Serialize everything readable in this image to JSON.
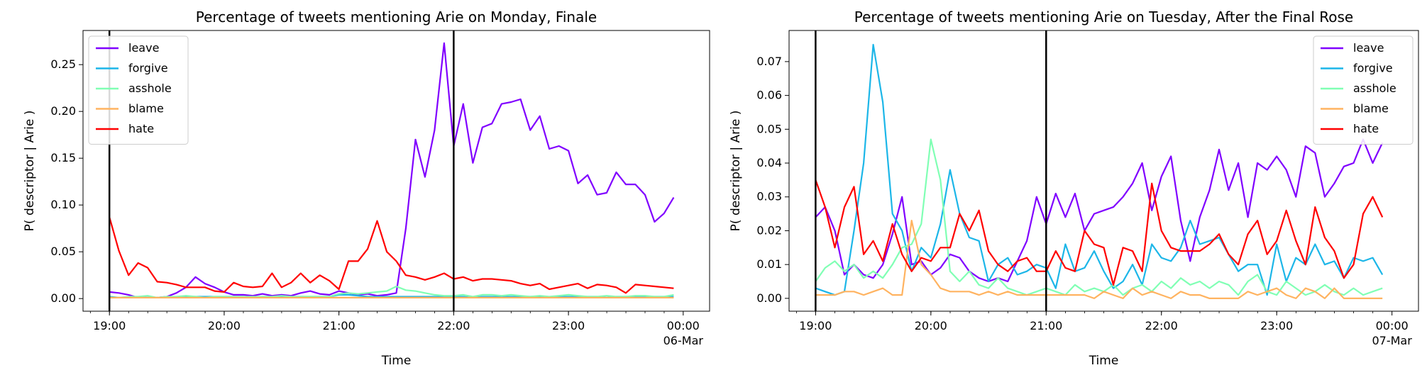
{
  "chart_data": [
    {
      "type": "line",
      "title": "Percentage of tweets mentioning Arie on Monday, Finale",
      "xlabel": "Time",
      "ylabel": "P( descriptor | Arie )",
      "date_label": "06-Mar",
      "x_tick_labels": [
        "19:00",
        "20:00",
        "21:00",
        "22:00",
        "23:00",
        "00:00"
      ],
      "x_tick_hours": [
        0,
        1,
        2,
        3,
        4,
        5
      ],
      "y_tick_labels": [
        "0.00",
        "0.05",
        "0.10",
        "0.15",
        "0.20",
        "0.25"
      ],
      "y_ticks": [
        0,
        0.05,
        0.1,
        0.15,
        0.2,
        0.25
      ],
      "xlim": [
        -0.23,
        5.23
      ],
      "ylim": [
        -0.0135,
        0.2865
      ],
      "vlines": [
        0,
        3
      ],
      "legend_position": "upper left",
      "x_hours": [
        0,
        0.083,
        0.167,
        0.25,
        0.333,
        0.417,
        0.5,
        0.583,
        0.667,
        0.75,
        0.833,
        0.917,
        1,
        1.083,
        1.167,
        1.25,
        1.333,
        1.417,
        1.5,
        1.583,
        1.667,
        1.75,
        1.833,
        1.917,
        2,
        2.083,
        2.167,
        2.25,
        2.333,
        2.417,
        2.5,
        2.583,
        2.667,
        2.75,
        2.833,
        2.917,
        3,
        3.083,
        3.167,
        3.25,
        3.333,
        3.417,
        3.5,
        3.583,
        3.667,
        3.75,
        3.833,
        3.917,
        4,
        4.083,
        4.167,
        4.25,
        4.333,
        4.417,
        4.5,
        4.583,
        4.667,
        4.75,
        4.833,
        4.917
      ],
      "series": [
        {
          "name": "leave",
          "color": "#8000ff",
          "values": [
            0.007,
            0.006,
            0.004,
            0.001,
            0.001,
            0.001,
            0.002,
            0.006,
            0.012,
            0.023,
            0.016,
            0.012,
            0.007,
            0.004,
            0.004,
            0.003,
            0.005,
            0.003,
            0.004,
            0.003,
            0.006,
            0.008,
            0.005,
            0.004,
            0.008,
            0.006,
            0.004,
            0.005,
            0.003,
            0.004,
            0.006,
            0.075,
            0.17,
            0.13,
            0.18,
            0.273,
            0.163,
            0.208,
            0.145,
            0.183,
            0.187,
            0.208,
            0.21,
            0.213,
            0.18,
            0.195,
            0.16,
            0.163,
            0.158,
            0.123,
            0.132,
            0.111,
            0.113,
            0.135,
            0.122,
            0.122,
            0.111,
            0.082,
            0.091,
            0.108
          ]
        },
        {
          "name": "forgive",
          "color": "#1cb6e8",
          "values": [
            0.002,
            0.001,
            0.001,
            0.001,
            0.001,
            0.001,
            0.001,
            0.001,
            0.002,
            0.002,
            0.002,
            0.002,
            0.002,
            0.002,
            0.002,
            0.001,
            0.002,
            0.002,
            0.002,
            0.002,
            0.002,
            0.002,
            0.002,
            0.002,
            0.004,
            0.004,
            0.003,
            0.002,
            0.002,
            0.002,
            0.002,
            0.002,
            0.002,
            0.002,
            0.002,
            0.002,
            0.002,
            0.002,
            0.001,
            0.002,
            0.002,
            0.002,
            0.002,
            0.002,
            0.002,
            0.002,
            0.001,
            0.002,
            0.002,
            0.002,
            0.002,
            0.002,
            0.001,
            0.002,
            0.002,
            0.002,
            0.002,
            0.002,
            0.002,
            0.002
          ]
        },
        {
          "name": "asshole",
          "color": "#80ffb4",
          "values": [
            0.001,
            0.001,
            0.002,
            0.002,
            0.003,
            0.001,
            0.002,
            0.002,
            0.003,
            0.002,
            0.001,
            0.002,
            0.002,
            0.002,
            0.002,
            0.002,
            0.002,
            0.002,
            0.003,
            0.002,
            0.002,
            0.002,
            0.002,
            0.002,
            0.005,
            0.006,
            0.005,
            0.006,
            0.007,
            0.008,
            0.013,
            0.009,
            0.008,
            0.006,
            0.004,
            0.003,
            0.003,
            0.004,
            0.002,
            0.004,
            0.004,
            0.003,
            0.004,
            0.003,
            0.002,
            0.003,
            0.002,
            0.003,
            0.004,
            0.003,
            0.002,
            0.002,
            0.003,
            0.002,
            0.002,
            0.003,
            0.003,
            0.002,
            0.002,
            0.004
          ]
        },
        {
          "name": "blame",
          "color": "#ffb360",
          "values": [
            0.001,
            0.001,
            0.001,
            0.001,
            0.001,
            0.001,
            0.001,
            0.001,
            0.001,
            0.001,
            0.001,
            0.001,
            0.001,
            0.001,
            0.001,
            0.001,
            0.001,
            0.001,
            0.001,
            0.001,
            0.001,
            0.001,
            0.001,
            0.001,
            0.001,
            0.001,
            0.001,
            0.001,
            0.001,
            0.001,
            0.001,
            0.001,
            0.001,
            0.001,
            0.001,
            0.001,
            0.001,
            0.001,
            0.001,
            0.001,
            0.001,
            0.001,
            0.001,
            0.001,
            0.001,
            0.001,
            0.001,
            0.001,
            0.001,
            0.001,
            0.001,
            0.001,
            0.001,
            0.001,
            0.001,
            0.001,
            0.001,
            0.001,
            0.001,
            0.001
          ]
        },
        {
          "name": "hate",
          "color": "#ff0000",
          "values": [
            0.087,
            0.051,
            0.025,
            0.038,
            0.033,
            0.018,
            0.017,
            0.015,
            0.012,
            0.012,
            0.012,
            0.008,
            0.007,
            0.017,
            0.013,
            0.012,
            0.013,
            0.027,
            0.012,
            0.017,
            0.027,
            0.017,
            0.025,
            0.019,
            0.01,
            0.04,
            0.04,
            0.053,
            0.083,
            0.05,
            0.04,
            0.025,
            0.023,
            0.02,
            0.023,
            0.027,
            0.021,
            0.023,
            0.019,
            0.021,
            0.021,
            0.02,
            0.019,
            0.016,
            0.014,
            0.016,
            0.01,
            0.012,
            0.014,
            0.016,
            0.011,
            0.015,
            0.014,
            0.012,
            0.006,
            0.015,
            0.014,
            0.013,
            0.012,
            0.011
          ]
        }
      ]
    },
    {
      "type": "line",
      "title": "Percentage of tweets mentioning Arie on Tuesday, After the Final Rose",
      "xlabel": "Time",
      "ylabel": "P( descriptor | Arie )",
      "date_label": "07-Mar",
      "x_tick_labels": [
        "19:00",
        "20:00",
        "21:00",
        "22:00",
        "23:00",
        "00:00"
      ],
      "x_tick_hours": [
        0,
        1,
        2,
        3,
        4,
        5
      ],
      "y_tick_labels": [
        "0.00",
        "0.01",
        "0.02",
        "0.03",
        "0.04",
        "0.05",
        "0.06",
        "0.07"
      ],
      "y_ticks": [
        0,
        0.01,
        0.02,
        0.03,
        0.04,
        0.05,
        0.06,
        0.07
      ],
      "xlim": [
        -0.23,
        5.23
      ],
      "ylim": [
        -0.0038,
        0.0792
      ],
      "vlines": [
        0,
        2
      ],
      "legend_position": "upper right",
      "x_hours": [
        0,
        0.083,
        0.167,
        0.25,
        0.333,
        0.417,
        0.5,
        0.583,
        0.667,
        0.75,
        0.833,
        0.917,
        1,
        1.083,
        1.167,
        1.25,
        1.333,
        1.417,
        1.5,
        1.583,
        1.667,
        1.75,
        1.833,
        1.917,
        2,
        2.083,
        2.167,
        2.25,
        2.333,
        2.417,
        2.5,
        2.583,
        2.667,
        2.75,
        2.833,
        2.917,
        3,
        3.083,
        3.167,
        3.25,
        3.333,
        3.417,
        3.5,
        3.583,
        3.667,
        3.75,
        3.833,
        3.917,
        4,
        4.083,
        4.167,
        4.25,
        4.333,
        4.417,
        4.5,
        4.583,
        4.667,
        4.75,
        4.833,
        4.917
      ],
      "series": [
        {
          "name": "leave",
          "color": "#8000ff",
          "values": [
            0.024,
            0.027,
            0.02,
            0.007,
            0.01,
            0.007,
            0.006,
            0.01,
            0.019,
            0.03,
            0.01,
            0.011,
            0.007,
            0.009,
            0.013,
            0.012,
            0.008,
            0.006,
            0.005,
            0.006,
            0.005,
            0.011,
            0.017,
            0.03,
            0.022,
            0.031,
            0.024,
            0.031,
            0.02,
            0.025,
            0.026,
            0.027,
            0.03,
            0.034,
            0.04,
            0.026,
            0.036,
            0.042,
            0.023,
            0.011,
            0.024,
            0.032,
            0.044,
            0.032,
            0.04,
            0.024,
            0.04,
            0.038,
            0.042,
            0.038,
            0.03,
            0.045,
            0.043,
            0.03,
            0.034,
            0.039,
            0.04,
            0.047,
            0.04,
            0.046
          ]
        },
        {
          "name": "forgive",
          "color": "#1cb6e8",
          "values": [
            0.003,
            0.002,
            0.001,
            0.002,
            0.02,
            0.04,
            0.075,
            0.058,
            0.025,
            0.02,
            0.008,
            0.015,
            0.012,
            0.022,
            0.038,
            0.025,
            0.018,
            0.017,
            0.005,
            0.01,
            0.012,
            0.007,
            0.008,
            0.01,
            0.009,
            0.003,
            0.016,
            0.008,
            0.009,
            0.014,
            0.008,
            0.003,
            0.005,
            0.01,
            0.004,
            0.016,
            0.012,
            0.011,
            0.015,
            0.023,
            0.016,
            0.017,
            0.018,
            0.013,
            0.008,
            0.01,
            0.01,
            0.001,
            0.016,
            0.005,
            0.012,
            0.01,
            0.016,
            0.01,
            0.011,
            0.006,
            0.012,
            0.011,
            0.012,
            0.007
          ]
        },
        {
          "name": "asshole",
          "color": "#80ffb4",
          "values": [
            0.005,
            0.009,
            0.011,
            0.008,
            0.01,
            0.006,
            0.008,
            0.006,
            0.01,
            0.015,
            0.016,
            0.022,
            0.047,
            0.035,
            0.008,
            0.005,
            0.008,
            0.004,
            0.003,
            0.006,
            0.003,
            0.002,
            0.001,
            0.002,
            0.003,
            0.002,
            0.001,
            0.004,
            0.002,
            0.003,
            0.002,
            0.004,
            0.001,
            0.003,
            0.004,
            0.002,
            0.005,
            0.003,
            0.006,
            0.004,
            0.005,
            0.003,
            0.005,
            0.004,
            0.001,
            0.005,
            0.007,
            0.002,
            0.001,
            0.005,
            0.003,
            0.001,
            0.002,
            0.004,
            0.002,
            0.001,
            0.003,
            0.001,
            0.002,
            0.003
          ]
        },
        {
          "name": "blame",
          "color": "#ffb360",
          "values": [
            0.001,
            0.001,
            0.001,
            0.002,
            0.002,
            0.001,
            0.002,
            0.003,
            0.001,
            0.001,
            0.023,
            0.01,
            0.007,
            0.003,
            0.002,
            0.002,
            0.002,
            0.001,
            0.002,
            0.001,
            0.002,
            0.001,
            0.001,
            0.001,
            0.001,
            0.001,
            0.001,
            0.001,
            0.001,
            0.0,
            0.002,
            0.001,
            0.0,
            0.003,
            0.001,
            0.002,
            0.001,
            0.0,
            0.002,
            0.001,
            0.001,
            0.0,
            0.0,
            0.0,
            0.0,
            0.002,
            0.001,
            0.002,
            0.003,
            0.001,
            0.0,
            0.003,
            0.002,
            0.0,
            0.003,
            0.0,
            0.0,
            0.0,
            0.0,
            0.0
          ]
        },
        {
          "name": "hate",
          "color": "#ff0000",
          "values": [
            0.035,
            0.027,
            0.015,
            0.027,
            0.033,
            0.013,
            0.017,
            0.011,
            0.022,
            0.013,
            0.008,
            0.012,
            0.011,
            0.015,
            0.015,
            0.025,
            0.02,
            0.026,
            0.014,
            0.01,
            0.008,
            0.011,
            0.012,
            0.008,
            0.008,
            0.014,
            0.009,
            0.008,
            0.02,
            0.016,
            0.015,
            0.004,
            0.015,
            0.014,
            0.008,
            0.034,
            0.02,
            0.015,
            0.014,
            0.014,
            0.014,
            0.016,
            0.019,
            0.013,
            0.01,
            0.019,
            0.023,
            0.013,
            0.017,
            0.026,
            0.017,
            0.01,
            0.027,
            0.018,
            0.014,
            0.006,
            0.01,
            0.025,
            0.03,
            0.024
          ]
        }
      ]
    }
  ]
}
